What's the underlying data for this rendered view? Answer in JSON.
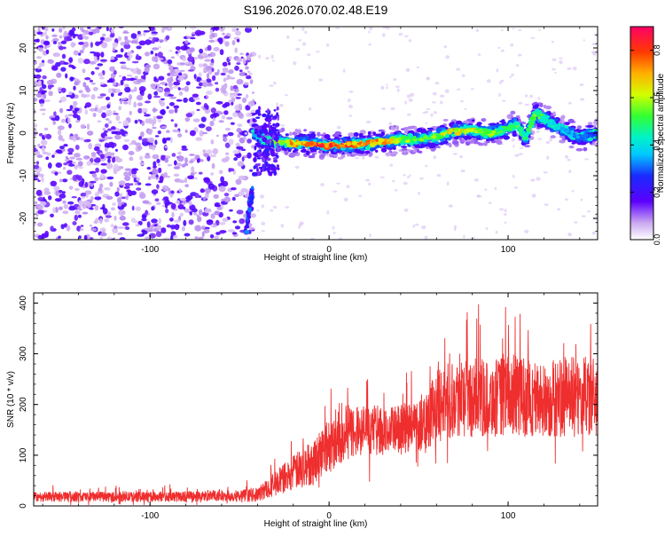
{
  "title": "S196.2026.070.02.48.E19",
  "chart_data": [
    {
      "type": "heatmap",
      "name": "spectrogram",
      "xlabel": "Height of straight line (km)",
      "ylabel": "Frequency (Hz)",
      "xlim": [
        -165,
        150
      ],
      "ylim": [
        -25,
        25
      ],
      "xticks": [
        -100,
        0,
        100
      ],
      "xtick_labels": [
        "-100",
        "0",
        "100"
      ],
      "yticks": [
        20,
        10,
        0,
        -10,
        -20
      ],
      "ytick_labels": [
        "20",
        "10",
        "0",
        "-10",
        "-20"
      ],
      "colorbar": {
        "label": "Normalized spectral amplitude",
        "range": [
          0,
          0.9
        ],
        "ticks": [
          0.0,
          0.2,
          0.4,
          0.6,
          0.8
        ],
        "tick_labels": [
          "0.0",
          "0.2",
          "0.4",
          "0.6",
          "0.8"
        ]
      },
      "noise_region_x": [
        -165,
        -42
      ],
      "gap_region_x": [
        -42,
        -38
      ],
      "ridge": {
        "x": [
          -42,
          -35,
          -30,
          -20,
          -10,
          0,
          10,
          20,
          30,
          40,
          50,
          60,
          70,
          80,
          90,
          100,
          105,
          110,
          115,
          120,
          125,
          130,
          140,
          150
        ],
        "freq": [
          0,
          -1.5,
          -2,
          -2.5,
          -2.5,
          -3,
          -2.8,
          -2.5,
          -2,
          -1.5,
          -1.5,
          -0.8,
          0.5,
          0.8,
          0,
          1,
          2,
          -1,
          4.5,
          3.5,
          2,
          1,
          -1,
          0
        ],
        "amplitude": [
          0.35,
          0.5,
          0.6,
          0.75,
          0.8,
          0.85,
          0.8,
          0.78,
          0.75,
          0.6,
          0.55,
          0.6,
          0.7,
          0.65,
          0.6,
          0.5,
          0.55,
          0.5,
          0.6,
          0.5,
          0.45,
          0.4,
          0.35,
          0.3
        ]
      },
      "lower_branch": {
        "x": [
          -46,
          -45,
          -44,
          -43
        ],
        "freq": [
          -22,
          -19,
          -16,
          -14
        ]
      }
    },
    {
      "type": "line",
      "name": "snr",
      "xlabel": "Height of straight line (km)",
      "ylabel": "SNR (10 * v/v)",
      "xlim": [
        -165,
        150
      ],
      "ylim": [
        0,
        420
      ],
      "xticks": [
        -100,
        0,
        100
      ],
      "xtick_labels": [
        "-100",
        "0",
        "100"
      ],
      "yticks": [
        0,
        100,
        200,
        300,
        400
      ],
      "ytick_labels": [
        "0",
        "100",
        "200",
        "300",
        "400"
      ],
      "color": "#ef2e2e",
      "trend": {
        "x": [
          -165,
          -100,
          -50,
          -40,
          -30,
          -20,
          -10,
          0,
          10,
          20,
          30,
          40,
          50,
          60,
          70,
          80,
          90,
          100,
          110,
          120,
          130,
          140,
          150
        ],
        "mean": [
          18,
          18,
          20,
          22,
          45,
          65,
          85,
          120,
          145,
          150,
          145,
          150,
          160,
          195,
          215,
          215,
          210,
          220,
          215,
          205,
          215,
          215,
          215
        ],
        "spread": [
          10,
          10,
          12,
          14,
          25,
          35,
          45,
          55,
          55,
          50,
          45,
          50,
          55,
          70,
          80,
          80,
          75,
          80,
          80,
          75,
          80,
          80,
          80
        ]
      }
    }
  ]
}
